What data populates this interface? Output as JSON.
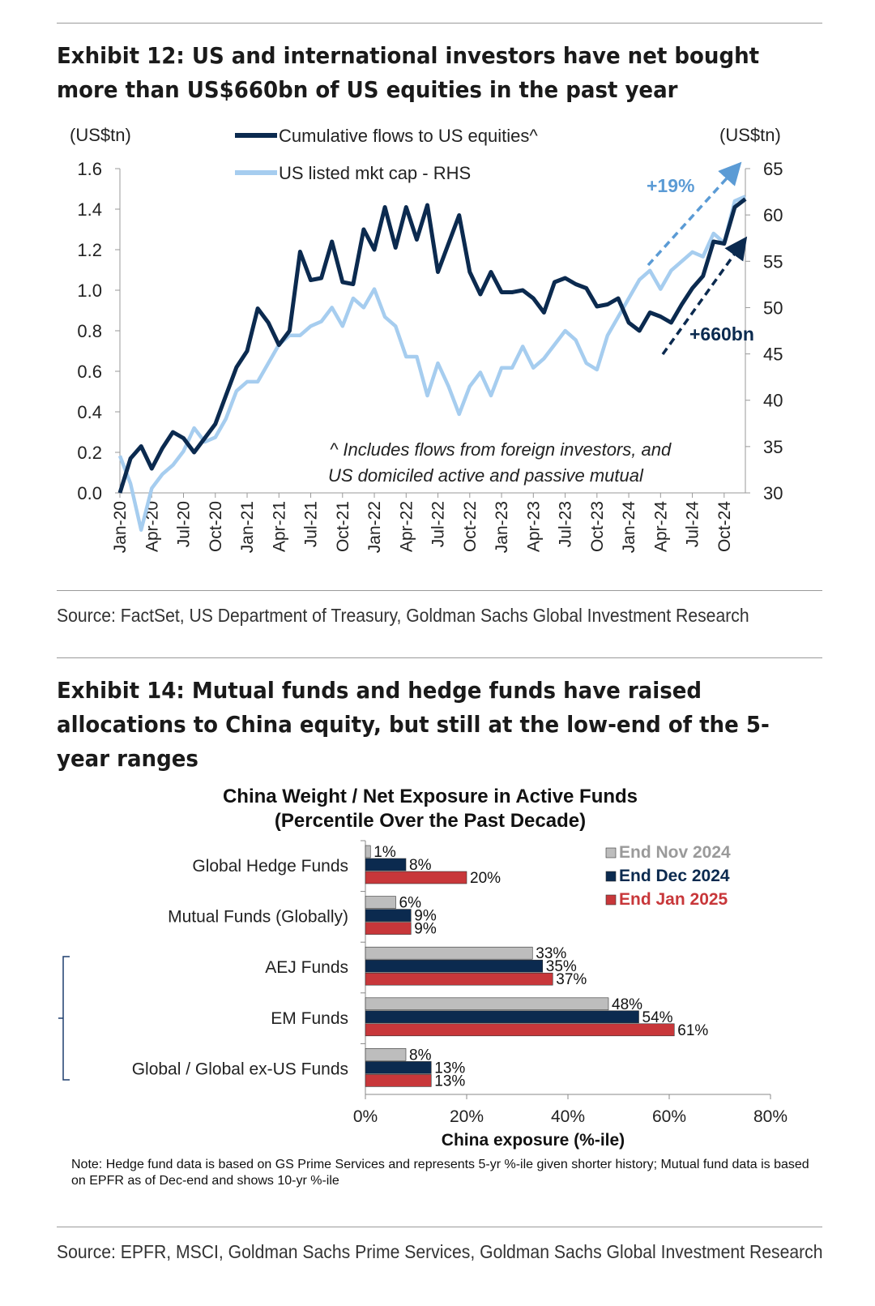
{
  "exhibit12": {
    "title": "Exhibit 12: US and international investors have net bought more than US$660bn of US equities in the past year",
    "source": "Source: FactSet, US Department of Treasury, Goldman Sachs Global Investment Research"
  },
  "exhibit14": {
    "title": "Exhibit 14: Mutual funds and hedge funds have raised allocations to China equity, but still at the low-end of the 5-year ranges",
    "note": "Note: Hedge fund data is based on GS Prime Services and represents 5-yr %-ile given shorter history; Mutual fund data is based on EPFR as of Dec-end and shows 10-yr %-ile",
    "source": "Source: EPFR, MSCI, Goldman Sachs Prime Services, Goldman Sachs Global Investment Research"
  },
  "chart_data": [
    {
      "type": "line",
      "title": "Exhibit 12: US and international investors have net bought more than US$660bn of US equities in the past year",
      "left_unit": "(US$tn)",
      "right_unit": "(US$tn)",
      "x_ticks": [
        "Jan-20",
        "Apr-20",
        "Jul-20",
        "Oct-20",
        "Jan-21",
        "Apr-21",
        "Jul-21",
        "Oct-21",
        "Jan-22",
        "Apr-22",
        "Jul-22",
        "Oct-22",
        "Jan-23",
        "Apr-23",
        "Jul-23",
        "Oct-23",
        "Jan-24",
        "Apr-24",
        "Jul-24",
        "Oct-24"
      ],
      "ylim": [
        0,
        1.6
      ],
      "y_ticks": [
        "0.0",
        "0.2",
        "0.4",
        "0.6",
        "0.8",
        "1.0",
        "1.2",
        "1.4",
        "1.6"
      ],
      "y2lim": [
        30,
        65
      ],
      "y2_ticks": [
        "30",
        "35",
        "40",
        "45",
        "50",
        "55",
        "60",
        "65"
      ],
      "series": [
        {
          "name": "Cumulative flows to US equities^",
          "axis": "left",
          "color": "#0b2a4f",
          "values": [
            0.0,
            0.17,
            0.23,
            0.12,
            0.22,
            0.3,
            0.27,
            0.2,
            0.27,
            0.34,
            0.48,
            0.62,
            0.7,
            0.91,
            0.84,
            0.73,
            0.8,
            1.19,
            1.05,
            1.06,
            1.24,
            1.04,
            1.03,
            1.3,
            1.2,
            1.41,
            1.21,
            1.41,
            1.25,
            1.42,
            1.09,
            1.23,
            1.37,
            1.09,
            0.98,
            1.09,
            0.99,
            0.99,
            1.0,
            0.96,
            0.89,
            1.04,
            1.06,
            1.03,
            1.01,
            0.92,
            0.93,
            0.96,
            0.84,
            0.8,
            0.89,
            0.87,
            0.84,
            0.93,
            1.01,
            1.07,
            1.24,
            1.23,
            1.41,
            1.45
          ]
        },
        {
          "name": "US listed mkt cap - RHS",
          "axis": "right",
          "color": "#a6cdef",
          "values": [
            34,
            31,
            26,
            30.5,
            32,
            33,
            34.5,
            37,
            35.5,
            36,
            38,
            41,
            42,
            42,
            44,
            46,
            47,
            47,
            48,
            48.5,
            50,
            48,
            51,
            50,
            52,
            49,
            48,
            44.7,
            44.7,
            40.5,
            44,
            41.5,
            38.5,
            41.5,
            43,
            40.5,
            43.5,
            43.5,
            45.8,
            43.5,
            44.5,
            46,
            47.5,
            46.5,
            44,
            43.3,
            47,
            49,
            51,
            53,
            54,
            52,
            54,
            55,
            56,
            55.5,
            58,
            57,
            61.5,
            62
          ]
        }
      ],
      "annotations": [
        "+19%",
        "+660bn",
        "^ Includes flows from foreign investors, and",
        "US domiciled active and passive mutual"
      ]
    },
    {
      "type": "bar",
      "orientation": "horizontal",
      "title": "China Weight / Net Exposure in Active Funds",
      "subtitle": "(Percentile Over the Past Decade)",
      "xlabel": "China exposure  (%-ile)",
      "xlim": [
        0,
        80
      ],
      "x_ticks": [
        "0%",
        "20%",
        "40%",
        "60%",
        "80%"
      ],
      "categories": [
        "Global Hedge Funds",
        "Mutual Funds (Globally)",
        "AEJ Funds",
        "EM Funds",
        "Global / Global ex-US Funds"
      ],
      "series": [
        {
          "name": "End Nov 2024",
          "color": "#bdbdbd",
          "values": [
            1,
            6,
            33,
            48,
            8
          ],
          "labels": [
            "1%",
            "6%",
            "33%",
            "48%",
            "8%"
          ]
        },
        {
          "name": "End Dec 2024",
          "color": "#0b2a4f",
          "values": [
            8,
            9,
            35,
            54,
            13
          ],
          "labels": [
            "8%",
            "9%",
            "35%",
            "54%",
            "13%"
          ]
        },
        {
          "name": "End Jan 2025",
          "color": "#c8373a",
          "values": [
            20,
            9,
            37,
            61,
            13
          ],
          "labels": [
            "20%",
            "9%",
            "37%",
            "61%",
            "13%"
          ]
        }
      ]
    }
  ]
}
